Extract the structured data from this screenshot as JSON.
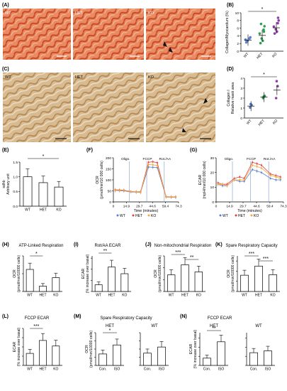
{
  "panels": {
    "A": {
      "letter": "(A)",
      "labels": [
        "WT",
        "HET",
        "KO"
      ]
    },
    "B": {
      "letter": "(B)",
      "ylabel": "Collagen/Myocardium (%)",
      "ticks": [
        "0",
        "2",
        "4",
        "6",
        "8",
        "10"
      ],
      "cats": [
        "WT",
        "HET",
        "KO"
      ],
      "sig": "*"
    },
    "C": {
      "letter": "(C)",
      "labels": [
        "WT",
        "HET",
        "KO"
      ]
    },
    "D": {
      "letter": "(D)",
      "ylabel": "Collagen I\nRelative mask area",
      "ticks": [
        "0",
        "1",
        "2",
        "3",
        "4"
      ],
      "cats": [
        "WT",
        "HET",
        "KO"
      ],
      "sig": "*"
    },
    "E": {
      "letter": "(E)",
      "ylabel": "sdhb\nArbitrary unit",
      "ticks": [
        "0.0",
        "0.5",
        "1.0",
        "1.5"
      ],
      "cats": [
        "WT",
        "HET",
        "KO"
      ],
      "sig": "*"
    },
    "F": {
      "letter": "(F)",
      "ylabel": "OCR\n(pmol/min/10 000 cells)",
      "xlabel": "Time (minutes)",
      "xticks": [
        "0",
        "14.9",
        "29.7",
        "44.6",
        "59.4",
        "74.3"
      ],
      "yticks": [
        "0",
        "50",
        "100",
        "150",
        "200"
      ],
      "markers": [
        "Oligo.",
        "FCCP",
        "Rot./AA"
      ],
      "legend": [
        "WT",
        "HET",
        "KO"
      ]
    },
    "G": {
      "letter": "(G)",
      "ylabel": "ECAR\n(mpH/min/10 000 cells)",
      "xlabel": "Time (minutes)",
      "xticks": [
        "0",
        "14.9",
        "29.7",
        "44.6",
        "59.4",
        "74.3"
      ],
      "yticks": [
        "0",
        "10",
        "20",
        "30"
      ],
      "markers": [
        "Oligo.",
        "FCCP",
        "Rot./AA"
      ],
      "legend": [
        "WT",
        "HET",
        "KO"
      ]
    },
    "H": {
      "letter": "(H)",
      "title": "ATP-Linked Respiration",
      "ylabel": "OCR\n(pmol/min/10000 cells)",
      "cats": [
        "WT",
        "HET",
        "KO"
      ],
      "sig": "*"
    },
    "I": {
      "letter": "(I)",
      "title": "Rot/AA ECAR",
      "ylabel": "ECAR\n(% increase over basal)",
      "cats": [
        "WT",
        "HET",
        "KO"
      ],
      "sig": "**"
    },
    "J": {
      "letter": "(J)",
      "title": "Non-mitochondrial Respiration",
      "ylabel": "OCR\n(pmol/min/10000 cells)",
      "cats": [
        "WT",
        "HET",
        "KO"
      ],
      "sig1": "***",
      "sig2": "**"
    },
    "K": {
      "letter": "(K)",
      "title": "Spare Respiratory Capacity",
      "ylabel": "OCR\n(pmol/min/10000 cells)",
      "cats": [
        "WT",
        "HET",
        "KO"
      ],
      "sig1": "***",
      "sig2": "***"
    },
    "L": {
      "letter": "(L)",
      "title": "FCCP ECAR",
      "ylabel": "ECAR\n(% increase over basal)",
      "cats": [
        "WT",
        "HET",
        "KO"
      ],
      "sig": "***"
    },
    "M": {
      "letter": "(M)",
      "title": "Spare Respiratory Capacity",
      "sub1": "HET",
      "sub2": "WT",
      "ylabel": "OCR\n(pmol/min/10000 cells)",
      "cats": [
        "Con.",
        "ISO"
      ],
      "sig": "*"
    },
    "N": {
      "letter": "(N)",
      "title": "FCCP ECAR",
      "sub1": "HET",
      "sub2": "WT",
      "ylabel": "ECAR\n(% increase over basal)",
      "cats": [
        "Con.",
        "ISO"
      ],
      "sig": "**"
    }
  },
  "colors": {
    "wt": "#5b7fcf",
    "het": "#2e9e4f",
    "ko": "#8e3fa8",
    "het_line": "#e24040",
    "ko_line": "#f2a83a",
    "histo_red": "#d4532c",
    "histo_brown": "#c9a576"
  },
  "chart_data": [
    {
      "panel": "B",
      "type": "scatter",
      "categories": [
        "WT",
        "HET",
        "KO"
      ],
      "series": [
        {
          "values": [
            2.9,
            4.1,
            6.1
          ]
        }
      ],
      "ylim": [
        0,
        10
      ]
    },
    {
      "panel": "D",
      "type": "scatter",
      "categories": [
        "WT",
        "HET",
        "KO"
      ],
      "series": [
        {
          "values": [
            1.2,
            2.1,
            2.8
          ]
        }
      ],
      "ylim": [
        0,
        4
      ]
    },
    {
      "panel": "E",
      "type": "bar",
      "categories": [
        "WT",
        "HET",
        "KO"
      ],
      "values": [
        1.0,
        0.8,
        0.65
      ],
      "ylim": [
        0,
        1.5
      ]
    },
    {
      "panel": "F",
      "type": "line",
      "x": [
        0,
        14.9,
        29.7,
        44.6,
        59.4,
        74.3
      ],
      "yticks": [
        0,
        50,
        100,
        150,
        200
      ]
    },
    {
      "panel": "G",
      "type": "line",
      "x": [
        0,
        14.9,
        29.7,
        44.6,
        59.4,
        74.3
      ],
      "yticks": [
        0,
        10,
        20,
        30
      ]
    },
    {
      "panel": "H",
      "type": "bar",
      "categories": [
        "WT",
        "HET",
        "KO"
      ],
      "values": [
        6.2,
        1.5,
        3.9
      ],
      "ylim": [
        0,
        10
      ]
    },
    {
      "panel": "I",
      "type": "bar",
      "categories": [
        "WT",
        "HET",
        "KO"
      ],
      "values": [
        30,
        110,
        80
      ],
      "ylim": [
        0,
        160
      ]
    },
    {
      "panel": "J",
      "type": "bar",
      "categories": [
        "WT",
        "HET",
        "KO"
      ],
      "values": [
        28,
        45,
        33
      ],
      "ylim": [
        0,
        60
      ]
    },
    {
      "panel": "K",
      "type": "bar",
      "categories": [
        "WT",
        "HET",
        "KO"
      ],
      "values": [
        160,
        250,
        165
      ],
      "ylim": [
        0,
        350
      ]
    },
    {
      "panel": "L",
      "type": "bar",
      "categories": [
        "WT",
        "HET",
        "KO"
      ],
      "values": [
        130,
        270,
        210
      ],
      "ylim": [
        0,
        400
      ]
    },
    {
      "panel": "M-HET",
      "type": "bar",
      "categories": [
        "Con.",
        "ISO"
      ],
      "values": [
        28,
        50
      ],
      "ylim": [
        0,
        80
      ]
    },
    {
      "panel": "M-WT",
      "type": "bar",
      "categories": [
        "Con.",
        "ISO"
      ],
      "values": [
        30,
        45
      ],
      "ylim": [
        0,
        80
      ]
    },
    {
      "panel": "N-HET",
      "type": "bar",
      "categories": [
        "Con.",
        "ISO"
      ],
      "values": [
        40,
        130
      ],
      "ylim": [
        0,
        180
      ]
    },
    {
      "panel": "N-WT",
      "type": "bar",
      "categories": [
        "Con.",
        "ISO"
      ],
      "values": [
        70,
        80
      ],
      "ylim": [
        0,
        180
      ]
    }
  ]
}
